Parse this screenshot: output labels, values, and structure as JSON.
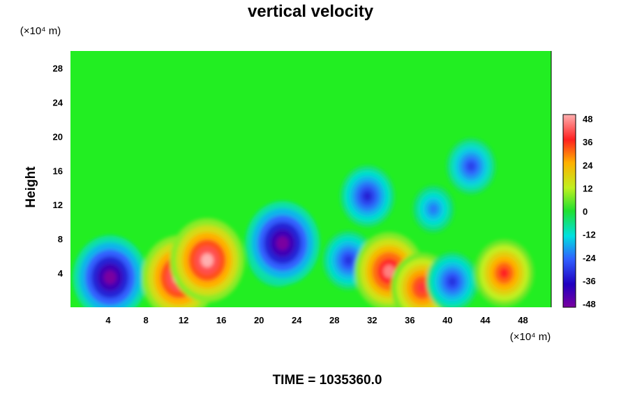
{
  "chart_data": {
    "type": "heatmap",
    "title": "vertical velocity",
    "ylabel": "Height",
    "y_unit_label": "(×10⁴ m)",
    "x_unit_label": "(×10⁴ m)",
    "xlim": [
      0,
      51
    ],
    "ylim": [
      0,
      30
    ],
    "x_ticks": [
      "4",
      "8",
      "12",
      "16",
      "20",
      "24",
      "28",
      "32",
      "36",
      "40",
      "44",
      "48"
    ],
    "y_ticks": [
      "4",
      "8",
      "12",
      "16",
      "20",
      "24",
      "28"
    ],
    "colorbar": {
      "range": [
        -48,
        48
      ],
      "ticks": [
        "48",
        "36",
        "24",
        "12",
        "0",
        "-12",
        "-24",
        "-36",
        "-48"
      ]
    },
    "background_level": 0,
    "features": [
      {
        "x": 4.2,
        "y": 3.8,
        "value": -38
      },
      {
        "x": 4.2,
        "y": 3.5,
        "value": -48
      },
      {
        "x": 13.0,
        "y": 4.8,
        "value": 38
      },
      {
        "x": 11.5,
        "y": 3.5,
        "value": 48
      },
      {
        "x": 14.5,
        "y": 5.5,
        "value": 48
      },
      {
        "x": 22.0,
        "y": 6.5,
        "value": -38
      },
      {
        "x": 22.5,
        "y": 7.5,
        "value": -48
      },
      {
        "x": 29.5,
        "y": 5.5,
        "value": -30
      },
      {
        "x": 31.5,
        "y": 13.0,
        "value": -32
      },
      {
        "x": 33.8,
        "y": 4.2,
        "value": 44
      },
      {
        "x": 37.3,
        "y": 2.3,
        "value": 38
      },
      {
        "x": 40.5,
        "y": 3.0,
        "value": -30
      },
      {
        "x": 46.0,
        "y": 4.0,
        "value": 36
      },
      {
        "x": 42.5,
        "y": 16.5,
        "value": -28
      },
      {
        "x": 38.5,
        "y": 11.5,
        "value": -22
      }
    ]
  },
  "footer": {
    "time_label": "TIME = 1035360.0"
  }
}
